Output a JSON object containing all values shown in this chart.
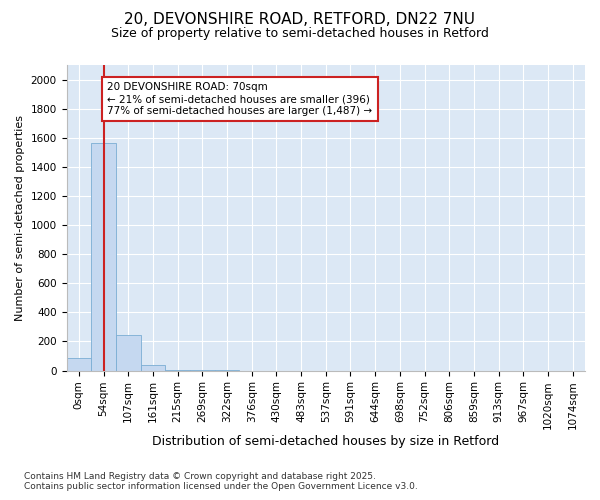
{
  "title_line1": "20, DEVONSHIRE ROAD, RETFORD, DN22 7NU",
  "title_line2": "Size of property relative to semi-detached houses in Retford",
  "xlabel": "Distribution of semi-detached houses by size in Retford",
  "ylabel": "Number of semi-detached properties",
  "categories": [
    "0sqm",
    "54sqm",
    "107sqm",
    "161sqm",
    "215sqm",
    "269sqm",
    "322sqm",
    "376sqm",
    "430sqm",
    "483sqm",
    "537sqm",
    "591sqm",
    "644sqm",
    "698sqm",
    "752sqm",
    "806sqm",
    "859sqm",
    "913sqm",
    "967sqm",
    "1020sqm",
    "1074sqm"
  ],
  "values": [
    90,
    1565,
    245,
    40,
    5,
    2,
    1,
    0,
    0,
    0,
    0,
    0,
    0,
    0,
    0,
    0,
    0,
    0,
    0,
    0,
    0
  ],
  "bar_color": "#c5d8f0",
  "bar_edge_color": "#7aadd4",
  "vline_color": "#cc2222",
  "annotation_title": "20 DEVONSHIRE ROAD: 70sqm",
  "annotation_line2": "← 21% of semi-detached houses are smaller (396)",
  "annotation_line3": "77% of semi-detached houses are larger (1,487) →",
  "annotation_box_color": "#cc2222",
  "ylim": [
    0,
    2100
  ],
  "yticks": [
    0,
    200,
    400,
    600,
    800,
    1000,
    1200,
    1400,
    1600,
    1800,
    2000
  ],
  "footer_line1": "Contains HM Land Registry data © Crown copyright and database right 2025.",
  "footer_line2": "Contains public sector information licensed under the Open Government Licence v3.0.",
  "bg_color": "#ffffff",
  "plot_bg_color": "#dce8f5",
  "grid_color": "#ffffff",
  "title_fontsize": 11,
  "subtitle_fontsize": 9,
  "ylabel_fontsize": 8,
  "xlabel_fontsize": 9,
  "tick_fontsize": 7.5,
  "footer_fontsize": 6.5
}
